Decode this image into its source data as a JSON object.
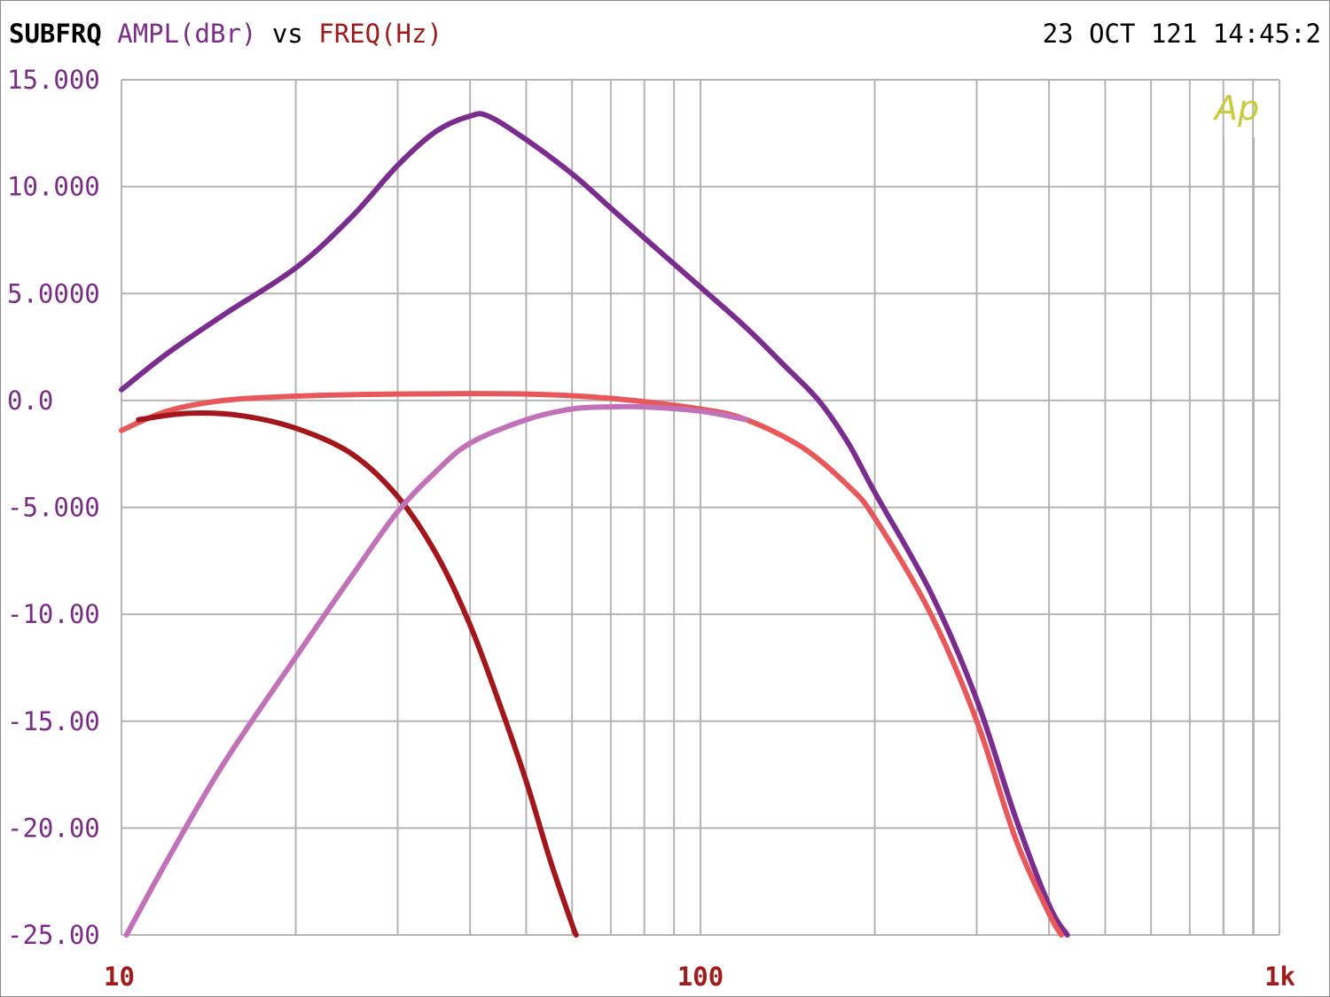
{
  "header": {
    "title": "SUBFRQ",
    "ylabel": "AMPL(dBr)",
    "vs": "vs",
    "xlabel": "FREQ(Hz)",
    "datetime": "23 OCT 121 14:45:2"
  },
  "logo": {
    "text": "Ap",
    "color": "#c8cc3a"
  },
  "colors": {
    "grid": "#b4b4b4",
    "y_tick_text": "#7a2d84",
    "x_tick_text": "#a01c1c"
  },
  "chart_data": {
    "type": "line",
    "title": "SUBFRQ",
    "xlabel": "FREQ(Hz)",
    "ylabel": "AMPL(dBr)",
    "xscale": "log",
    "xlim": [
      10,
      1000
    ],
    "ylim": [
      -25,
      15
    ],
    "grid": true,
    "y_ticks": [
      {
        "value": 15,
        "label": "15.000"
      },
      {
        "value": 10,
        "label": "10.000"
      },
      {
        "value": 5,
        "label": "5.0000"
      },
      {
        "value": 0,
        "label": "0.0"
      },
      {
        "value": -5,
        "label": "-5.000"
      },
      {
        "value": -10,
        "label": "-10.00"
      },
      {
        "value": -15,
        "label": "-15.00"
      },
      {
        "value": -20,
        "label": "-20.00"
      },
      {
        "value": -25,
        "label": "-25.00"
      }
    ],
    "x_ticks": [
      {
        "value": 10,
        "label": "10"
      },
      {
        "value": 100,
        "label": "100"
      },
      {
        "value": 1000,
        "label": "1k"
      }
    ],
    "series": [
      {
        "color": "#7a2d8e",
        "points": [
          [
            10,
            0.5
          ],
          [
            12,
            2.2
          ],
          [
            15,
            4.0
          ],
          [
            20,
            6.2
          ],
          [
            25,
            8.6
          ],
          [
            30,
            11.0
          ],
          [
            35,
            12.6
          ],
          [
            40,
            13.3
          ],
          [
            43,
            13.3
          ],
          [
            50,
            12.2
          ],
          [
            60,
            10.6
          ],
          [
            70,
            9.0
          ],
          [
            80,
            7.6
          ],
          [
            100,
            5.3
          ],
          [
            120,
            3.4
          ],
          [
            140,
            1.6
          ],
          [
            160,
            0.0
          ],
          [
            180,
            -2.0
          ],
          [
            200,
            -4.3
          ],
          [
            250,
            -9.0
          ],
          [
            300,
            -14.0
          ],
          [
            350,
            -19.5
          ],
          [
            400,
            -23.6
          ],
          [
            430,
            -25.0
          ]
        ]
      },
      {
        "color": "#e8585a",
        "points": [
          [
            10,
            -1.4
          ],
          [
            12,
            -0.5
          ],
          [
            15,
            0.0
          ],
          [
            20,
            0.2
          ],
          [
            30,
            0.3
          ],
          [
            50,
            0.3
          ],
          [
            70,
            0.1
          ],
          [
            100,
            -0.4
          ],
          [
            120,
            -0.9
          ],
          [
            150,
            -2.2
          ],
          [
            180,
            -4.0
          ],
          [
            200,
            -5.5
          ],
          [
            250,
            -10.0
          ],
          [
            300,
            -15.0
          ],
          [
            350,
            -20.5
          ],
          [
            400,
            -24.0
          ],
          [
            420,
            -25.0
          ]
        ]
      },
      {
        "color": "#a3171c",
        "points": [
          [
            10.7,
            -0.9
          ],
          [
            13,
            -0.6
          ],
          [
            16,
            -0.7
          ],
          [
            20,
            -1.3
          ],
          [
            25,
            -2.5
          ],
          [
            30,
            -4.5
          ],
          [
            35,
            -7.2
          ],
          [
            40,
            -10.5
          ],
          [
            45,
            -14.2
          ],
          [
            50,
            -17.8
          ],
          [
            55,
            -21.5
          ],
          [
            60,
            -24.5
          ],
          [
            61,
            -25.0
          ]
        ]
      },
      {
        "color": "#c071b8",
        "points": [
          [
            10.2,
            -25.0
          ],
          [
            12,
            -21.5
          ],
          [
            15,
            -17.0
          ],
          [
            20,
            -12.0
          ],
          [
            25,
            -8.2
          ],
          [
            30,
            -5.2
          ],
          [
            35,
            -3.3
          ],
          [
            40,
            -2.0
          ],
          [
            50,
            -0.9
          ],
          [
            60,
            -0.4
          ],
          [
            70,
            -0.3
          ],
          [
            80,
            -0.3
          ],
          [
            100,
            -0.5
          ],
          [
            120,
            -0.9
          ]
        ]
      }
    ]
  }
}
